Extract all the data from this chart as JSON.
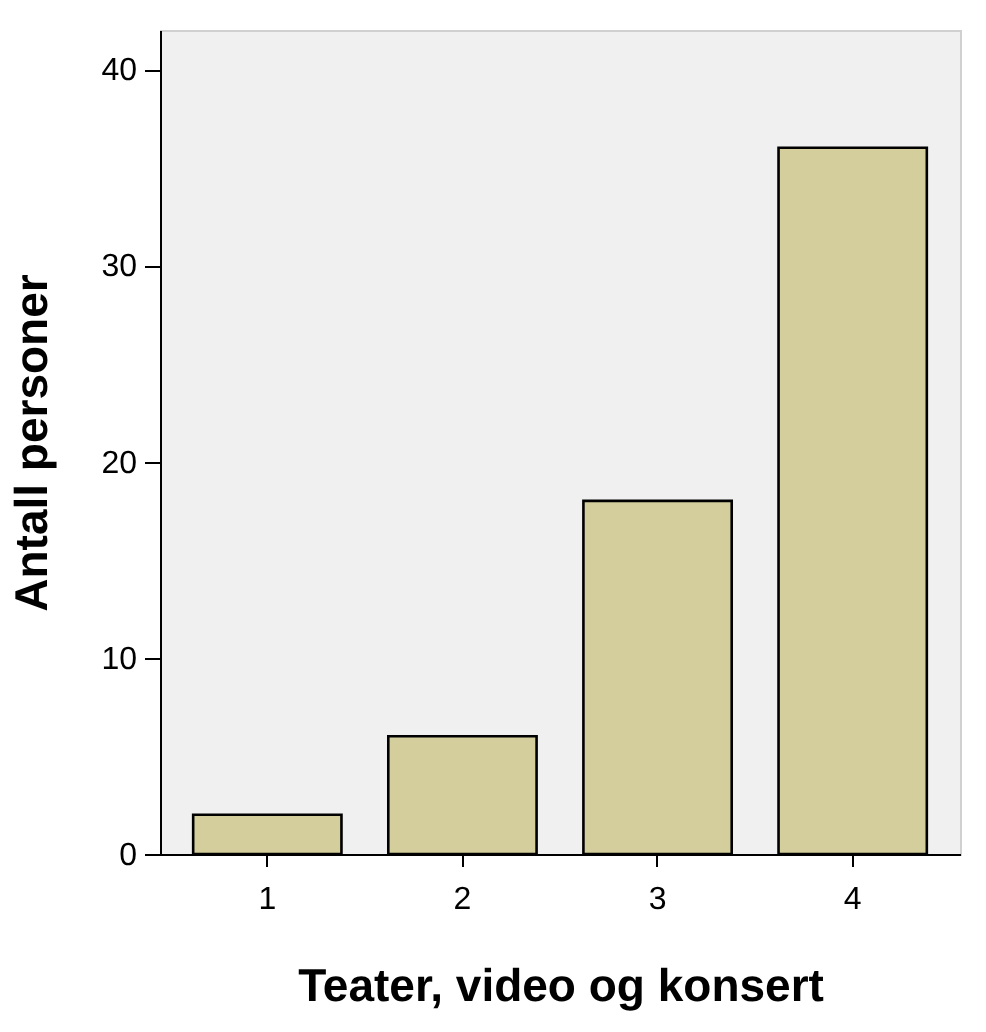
{
  "chart_data": {
    "type": "bar",
    "xlabel": "Teater, video og konsert",
    "ylabel": "Antall personer",
    "categories": [
      "1",
      "2",
      "3",
      "4"
    ],
    "values": [
      2,
      6,
      18,
      36
    ],
    "color": "#d3ce9b",
    "ylim": [
      0,
      42
    ],
    "yticks": [
      0,
      10,
      20,
      30,
      40
    ],
    "grid": false
  }
}
